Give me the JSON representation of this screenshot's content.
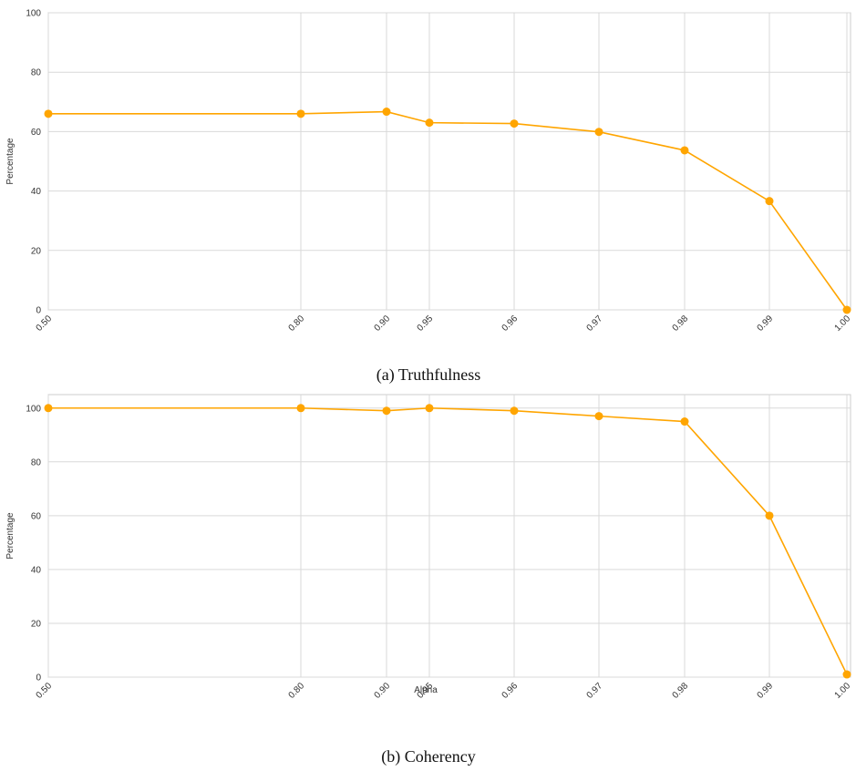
{
  "chart_data": [
    {
      "type": "line",
      "caption": "(a) Truthfulness",
      "xlabel": "",
      "ylabel": "Percentage",
      "ylim": [
        0,
        100
      ],
      "yticks": [
        0,
        20,
        40,
        60,
        80,
        100
      ],
      "grid": true,
      "categories": [
        "0.50",
        "0.80",
        "0.90",
        "0.95",
        "0.96",
        "0.97",
        "0.98",
        "0.99",
        "1.00"
      ],
      "x": [
        0.5,
        0.8,
        0.9,
        0.95,
        0.96,
        0.97,
        0.98,
        0.99,
        1.0
      ],
      "series": [
        {
          "color": "#FFA500",
          "values": [
            66,
            66,
            66.7,
            63,
            62.7,
            59.9,
            53.7,
            36.6,
            0
          ]
        }
      ]
    },
    {
      "type": "line",
      "caption": "(b) Coherency",
      "xlabel": "Alpha",
      "ylabel": "Percentage",
      "ylim": [
        0,
        105
      ],
      "yticks": [
        0,
        20,
        40,
        60,
        80,
        100
      ],
      "grid": true,
      "categories": [
        "0.50",
        "0.80",
        "0.90",
        "0.95",
        "0.96",
        "0.97",
        "0.98",
        "0.99",
        "1.00"
      ],
      "x": [
        0.5,
        0.8,
        0.9,
        0.95,
        0.96,
        0.97,
        0.98,
        0.99,
        1.0
      ],
      "series": [
        {
          "color": "#FFA500",
          "values": [
            100,
            100,
            99,
            100,
            99,
            97,
            95,
            60,
            1
          ]
        }
      ]
    }
  ]
}
